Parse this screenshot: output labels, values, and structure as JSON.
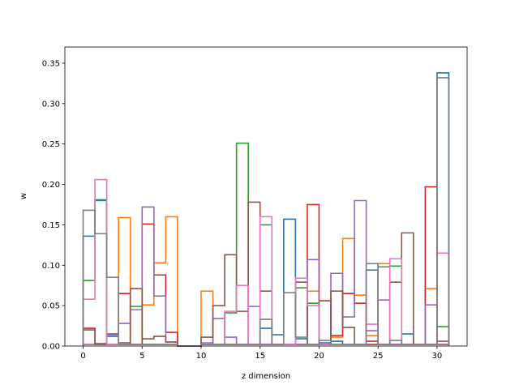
{
  "chart_data": {
    "type": "histogram-step",
    "xlabel": "z dimension",
    "ylabel": "w",
    "xlim": [
      -1.55,
      32.55
    ],
    "ylim": [
      0,
      0.37
    ],
    "xticks": [
      0,
      5,
      10,
      15,
      20,
      25,
      30
    ],
    "yticks": [
      0.0,
      0.05,
      0.1,
      0.15,
      0.2,
      0.25,
      0.3,
      0.35
    ],
    "ytick_labels": [
      "0.00",
      "0.05",
      "0.10",
      "0.15",
      "0.20",
      "0.25",
      "0.30",
      "0.35"
    ],
    "bin_edges": [
      0,
      1,
      2,
      3,
      4,
      5,
      6,
      7,
      8,
      9,
      10,
      11,
      12,
      13,
      14,
      15,
      16,
      17,
      18,
      19,
      20,
      21,
      22,
      23,
      24,
      25,
      26,
      27,
      28,
      29,
      30,
      31
    ],
    "grid": false,
    "series": [
      {
        "color": "#1f77b4",
        "values": [
          0.136,
          0.181,
          0.012,
          0.002,
          0.002,
          0.002,
          0.002,
          0.002,
          0,
          0,
          0.002,
          0.002,
          0.002,
          0.002,
          0.002,
          0.022,
          0.014,
          0.157,
          0.009,
          0.002,
          0.004,
          0.006,
          0.002,
          0.002,
          0.094,
          0.002,
          0.002,
          0.015,
          0.002,
          0.002,
          0.338
        ]
      },
      {
        "color": "#ff7f0e",
        "values": [
          0.002,
          0.002,
          0.002,
          0.159,
          0.002,
          0.051,
          0.103,
          0.16,
          0,
          0,
          0.068,
          0.002,
          0.002,
          0.002,
          0.002,
          0.002,
          0.002,
          0.002,
          0.002,
          0.068,
          0.002,
          0.011,
          0.133,
          0.063,
          0.013,
          0.102,
          0.002,
          0.002,
          0.002,
          0.071,
          0.002
        ]
      },
      {
        "color": "#2ca02c",
        "values": [
          0.081,
          0.18,
          0.002,
          0.002,
          0.049,
          0.002,
          0.002,
          0.002,
          0,
          0,
          0.002,
          0.002,
          0.041,
          0.251,
          0.002,
          0.15,
          0.002,
          0.002,
          0.072,
          0.053,
          0.002,
          0.002,
          0.002,
          0.002,
          0.002,
          0.098,
          0.099,
          0.002,
          0.002,
          0.002,
          0.024
        ]
      },
      {
        "color": "#d62728",
        "values": [
          0.022,
          0.003,
          0.015,
          0.065,
          0.002,
          0.151,
          0.088,
          0.017,
          0,
          0,
          0.002,
          0.002,
          0.002,
          0.002,
          0.002,
          0.002,
          0.002,
          0.002,
          0.002,
          0.175,
          0.056,
          0.013,
          0.065,
          0.053,
          0.006,
          0.002,
          0.002,
          0.002,
          0.002,
          0.197,
          0.002
        ]
      },
      {
        "color": "#9467bd",
        "values": [
          0.002,
          0.002,
          0.014,
          0.028,
          0.045,
          0.172,
          0.062,
          0.005,
          0,
          0,
          0.004,
          0.034,
          0.011,
          0.002,
          0.049,
          0.002,
          0.002,
          0.002,
          0.002,
          0.107,
          0.002,
          0.09,
          0.036,
          0.18,
          0.019,
          0.057,
          0.002,
          0.002,
          0.002,
          0.051,
          0.002
        ]
      },
      {
        "color": "#8c564b",
        "values": [
          0.02,
          0.002,
          0.002,
          0.004,
          0.071,
          0.009,
          0.012,
          0.005,
          0,
          0,
          0.011,
          0.05,
          0.113,
          0.043,
          0.178,
          0.068,
          0.002,
          0.002,
          0.079,
          0.002,
          0.002,
          0.068,
          0.023,
          0.002,
          0.002,
          0.002,
          0.079,
          0.14,
          0.002,
          0.002,
          0.006
        ]
      },
      {
        "color": "#e377c2",
        "values": [
          0.058,
          0.206,
          0.002,
          0.002,
          0.002,
          0.002,
          0.002,
          0.002,
          0,
          0,
          0.002,
          0.002,
          0.043,
          0.075,
          0.002,
          0.16,
          0.002,
          0.002,
          0.084,
          0.05,
          0.002,
          0.002,
          0.002,
          0.002,
          0.027,
          0.002,
          0.108,
          0.002,
          0.002,
          0.002,
          0.115
        ]
      },
      {
        "color": "#7f7f7f",
        "values": [
          0.168,
          0.139,
          0.085,
          0.002,
          0.002,
          0.002,
          0.002,
          0.002,
          0,
          0,
          0.002,
          0.002,
          0.002,
          0.002,
          0.002,
          0.033,
          0.002,
          0.066,
          0.011,
          0.002,
          0.007,
          0.002,
          0.002,
          0.002,
          0.102,
          0.002,
          0.007,
          0.002,
          0.002,
          0.002,
          0.332
        ]
      }
    ]
  }
}
